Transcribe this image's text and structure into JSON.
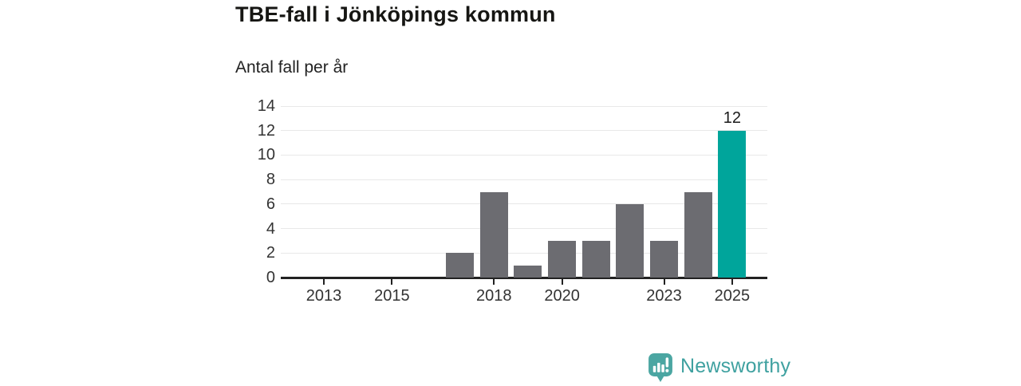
{
  "header": {
    "title": "TBE-fall i Jönköpings kommun",
    "subtitle": "Antal fall per år"
  },
  "footer": {
    "brand": "Newsworthy",
    "brand_text_color": "#3fa1a0",
    "logo_icon_color": "#4ba6a2"
  },
  "chart_data": {
    "type": "bar",
    "title": "TBE-fall i Jönköpings kommun",
    "subtitle": "Antal fall per år",
    "ylabel": "Antal fall per år",
    "categories": [
      2012,
      2013,
      2014,
      2015,
      2016,
      2017,
      2018,
      2019,
      2020,
      2021,
      2022,
      2023,
      2024,
      2025
    ],
    "values": [
      0,
      0,
      0,
      0,
      0,
      2,
      7,
      1,
      3,
      3,
      6,
      3,
      7,
      12
    ],
    "highlight_category": 2025,
    "highlight_value_label": "12",
    "bar_color": "#6c6c71",
    "highlight_color": "#00a59b",
    "ylim": [
      0,
      14
    ],
    "y_ticks": [
      0,
      2,
      4,
      6,
      8,
      10,
      12,
      14
    ],
    "x_tick_labels": [
      "2013",
      "2015",
      "2018",
      "2020",
      "2023",
      "2025"
    ],
    "grid": "horizontal",
    "gridline_color": "#e8e8e8",
    "axis_color": "#222222",
    "legend": "none"
  }
}
